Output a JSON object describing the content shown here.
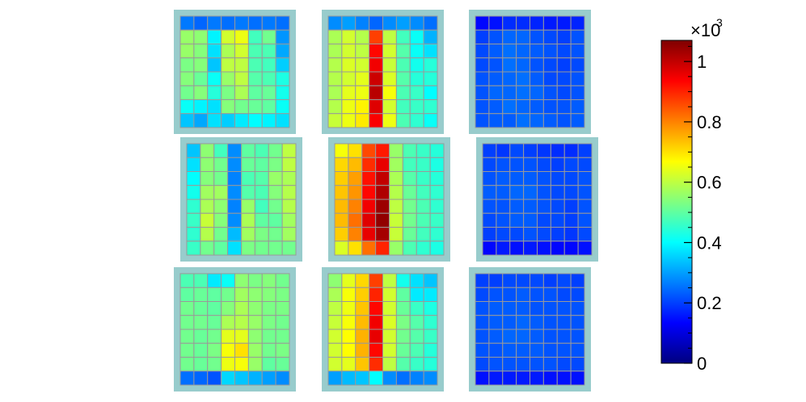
{
  "chart_data": {
    "type": "heatmap",
    "title": "",
    "grid": true,
    "layout": "3x3 panels of 8x8 cells",
    "frame_color": "#98cccc",
    "cell_grid_color": "#999999",
    "colorbar": {
      "min": 0,
      "max": 1.07,
      "multiplier_label": "×10",
      "multiplier_exponent": "3",
      "ticks": [
        {
          "value": 0,
          "label": "0"
        },
        {
          "value": 0.2,
          "label": "0.2"
        },
        {
          "value": 0.4,
          "label": "0.4"
        },
        {
          "value": 0.6,
          "label": "0.6"
        },
        {
          "value": 0.8,
          "label": "0.8"
        },
        {
          "value": 1.0,
          "label": "1"
        }
      ],
      "colormap": [
        "#00007f",
        "#0000ff",
        "#0080ff",
        "#00ffff",
        "#80ff80",
        "#ffff00",
        "#ff8000",
        "#ff0000",
        "#7f0000"
      ]
    },
    "panels": [
      {
        "row": 0,
        "col": 0,
        "values": [
          [
            0.26,
            0.24,
            0.26,
            0.25,
            0.26,
            0.25,
            0.26,
            0.25
          ],
          [
            0.56,
            0.55,
            0.39,
            0.62,
            0.65,
            0.47,
            0.52,
            0.29
          ],
          [
            0.56,
            0.54,
            0.37,
            0.58,
            0.62,
            0.48,
            0.48,
            0.31
          ],
          [
            0.53,
            0.54,
            0.34,
            0.6,
            0.6,
            0.48,
            0.47,
            0.35
          ],
          [
            0.54,
            0.51,
            0.41,
            0.56,
            0.6,
            0.49,
            0.48,
            0.43
          ],
          [
            0.52,
            0.54,
            0.44,
            0.53,
            0.58,
            0.5,
            0.51,
            0.42
          ],
          [
            0.41,
            0.39,
            0.37,
            0.54,
            0.52,
            0.51,
            0.5,
            0.41
          ],
          [
            0.34,
            0.31,
            0.37,
            0.35,
            0.38,
            0.4,
            0.39,
            0.37
          ]
        ]
      },
      {
        "row": 0,
        "col": 1,
        "values": [
          [
            0.28,
            0.3,
            0.27,
            0.24,
            0.28,
            0.3,
            0.28,
            0.25
          ],
          [
            0.58,
            0.62,
            0.59,
            0.87,
            0.6,
            0.47,
            0.41,
            0.32
          ],
          [
            0.58,
            0.62,
            0.6,
            0.93,
            0.62,
            0.49,
            0.41,
            0.37
          ],
          [
            0.59,
            0.63,
            0.62,
            0.95,
            0.61,
            0.48,
            0.42,
            0.44
          ],
          [
            0.59,
            0.62,
            0.64,
            0.99,
            0.63,
            0.49,
            0.44,
            0.44
          ],
          [
            0.58,
            0.64,
            0.65,
            1.01,
            0.66,
            0.48,
            0.46,
            0.4
          ],
          [
            0.59,
            0.65,
            0.68,
            0.97,
            0.62,
            0.47,
            0.46,
            0.45
          ],
          [
            0.61,
            0.65,
            0.69,
            0.94,
            0.65,
            0.48,
            0.45,
            0.41
          ]
        ]
      },
      {
        "row": 0,
        "col": 2,
        "values": [
          [
            0.14,
            0.15,
            0.18,
            0.18,
            0.17,
            0.16,
            0.16,
            0.17
          ],
          [
            0.2,
            0.22,
            0.24,
            0.24,
            0.22,
            0.21,
            0.2,
            0.22
          ],
          [
            0.21,
            0.23,
            0.25,
            0.24,
            0.23,
            0.22,
            0.21,
            0.22
          ],
          [
            0.21,
            0.22,
            0.25,
            0.24,
            0.22,
            0.21,
            0.2,
            0.21
          ],
          [
            0.22,
            0.23,
            0.24,
            0.25,
            0.23,
            0.21,
            0.21,
            0.22
          ],
          [
            0.22,
            0.24,
            0.24,
            0.25,
            0.24,
            0.22,
            0.21,
            0.22
          ],
          [
            0.22,
            0.23,
            0.25,
            0.24,
            0.23,
            0.22,
            0.22,
            0.23
          ],
          [
            0.22,
            0.23,
            0.23,
            0.25,
            0.24,
            0.23,
            0.22,
            0.23
          ]
        ]
      },
      {
        "row": 1,
        "col": 0,
        "values": [
          [
            0.34,
            0.55,
            0.47,
            0.28,
            0.5,
            0.48,
            0.52,
            0.6
          ],
          [
            0.37,
            0.55,
            0.52,
            0.28,
            0.51,
            0.5,
            0.53,
            0.6
          ],
          [
            0.4,
            0.54,
            0.52,
            0.27,
            0.48,
            0.49,
            0.56,
            0.58
          ],
          [
            0.42,
            0.57,
            0.57,
            0.28,
            0.49,
            0.48,
            0.54,
            0.59
          ],
          [
            0.45,
            0.58,
            0.55,
            0.27,
            0.56,
            0.47,
            0.52,
            0.59
          ],
          [
            0.46,
            0.61,
            0.54,
            0.28,
            0.58,
            0.5,
            0.5,
            0.57
          ],
          [
            0.45,
            0.59,
            0.52,
            0.33,
            0.57,
            0.53,
            0.52,
            0.57
          ],
          [
            0.46,
            0.52,
            0.5,
            0.37,
            0.53,
            0.52,
            0.52,
            0.52
          ]
        ]
      },
      {
        "row": 1,
        "col": 1,
        "values": [
          [
            0.66,
            0.7,
            0.86,
            0.91,
            0.56,
            0.48,
            0.46,
            0.44
          ],
          [
            0.71,
            0.74,
            0.89,
            0.96,
            0.57,
            0.47,
            0.46,
            0.43
          ],
          [
            0.72,
            0.77,
            0.92,
            1.0,
            0.58,
            0.49,
            0.46,
            0.44
          ],
          [
            0.73,
            0.78,
            0.93,
            1.02,
            0.59,
            0.51,
            0.47,
            0.45
          ],
          [
            0.74,
            0.8,
            0.95,
            1.04,
            0.6,
            0.52,
            0.48,
            0.45
          ],
          [
            0.74,
            0.82,
            0.97,
            1.05,
            0.61,
            0.52,
            0.48,
            0.46
          ],
          [
            0.72,
            0.8,
            0.96,
            1.03,
            0.61,
            0.51,
            0.47,
            0.45
          ],
          [
            0.63,
            0.7,
            0.82,
            0.9,
            0.56,
            0.48,
            0.45,
            0.43
          ]
        ]
      },
      {
        "row": 1,
        "col": 2,
        "values": [
          [
            0.2,
            0.19,
            0.21,
            0.2,
            0.19,
            0.18,
            0.18,
            0.2
          ],
          [
            0.21,
            0.22,
            0.22,
            0.22,
            0.21,
            0.2,
            0.21,
            0.21
          ],
          [
            0.22,
            0.23,
            0.23,
            0.23,
            0.22,
            0.21,
            0.21,
            0.22
          ],
          [
            0.23,
            0.23,
            0.24,
            0.24,
            0.22,
            0.21,
            0.21,
            0.22
          ],
          [
            0.22,
            0.22,
            0.23,
            0.23,
            0.22,
            0.21,
            0.2,
            0.22
          ],
          [
            0.21,
            0.22,
            0.23,
            0.23,
            0.21,
            0.21,
            0.2,
            0.22
          ],
          [
            0.2,
            0.21,
            0.21,
            0.22,
            0.21,
            0.2,
            0.19,
            0.21
          ],
          [
            0.14,
            0.16,
            0.15,
            0.16,
            0.15,
            0.14,
            0.14,
            0.15
          ]
        ]
      },
      {
        "row": 2,
        "col": 0,
        "values": [
          [
            0.48,
            0.48,
            0.38,
            0.41,
            0.55,
            0.53,
            0.54,
            0.52
          ],
          [
            0.5,
            0.51,
            0.5,
            0.52,
            0.57,
            0.55,
            0.54,
            0.53
          ],
          [
            0.52,
            0.51,
            0.5,
            0.54,
            0.58,
            0.55,
            0.53,
            0.53
          ],
          [
            0.52,
            0.52,
            0.51,
            0.58,
            0.59,
            0.56,
            0.53,
            0.52
          ],
          [
            0.52,
            0.51,
            0.52,
            0.64,
            0.64,
            0.55,
            0.52,
            0.52
          ],
          [
            0.52,
            0.51,
            0.53,
            0.66,
            0.7,
            0.56,
            0.52,
            0.53
          ],
          [
            0.52,
            0.51,
            0.52,
            0.65,
            0.66,
            0.56,
            0.5,
            0.51
          ],
          [
            0.25,
            0.24,
            0.22,
            0.36,
            0.34,
            0.32,
            0.3,
            0.28
          ]
        ]
      },
      {
        "row": 2,
        "col": 1,
        "values": [
          [
            0.55,
            0.64,
            0.71,
            0.87,
            0.6,
            0.42,
            0.37,
            0.34
          ],
          [
            0.58,
            0.66,
            0.72,
            0.9,
            0.62,
            0.5,
            0.38,
            0.38
          ],
          [
            0.6,
            0.65,
            0.73,
            0.93,
            0.62,
            0.51,
            0.46,
            0.43
          ],
          [
            0.61,
            0.66,
            0.74,
            0.95,
            0.63,
            0.53,
            0.49,
            0.45
          ],
          [
            0.62,
            0.67,
            0.75,
            0.96,
            0.62,
            0.52,
            0.49,
            0.46
          ],
          [
            0.62,
            0.67,
            0.75,
            0.93,
            0.62,
            0.51,
            0.48,
            0.44
          ],
          [
            0.62,
            0.64,
            0.73,
            0.89,
            0.6,
            0.49,
            0.46,
            0.44
          ],
          [
            0.3,
            0.33,
            0.34,
            0.4,
            0.28,
            0.25,
            0.27,
            0.28
          ]
        ]
      },
      {
        "row": 2,
        "col": 2,
        "values": [
          [
            0.2,
            0.2,
            0.21,
            0.21,
            0.21,
            0.2,
            0.21,
            0.2
          ],
          [
            0.21,
            0.22,
            0.22,
            0.23,
            0.22,
            0.22,
            0.21,
            0.21
          ],
          [
            0.22,
            0.23,
            0.23,
            0.23,
            0.22,
            0.22,
            0.22,
            0.22
          ],
          [
            0.22,
            0.23,
            0.23,
            0.24,
            0.23,
            0.22,
            0.22,
            0.22
          ],
          [
            0.22,
            0.23,
            0.24,
            0.24,
            0.23,
            0.22,
            0.22,
            0.22
          ],
          [
            0.22,
            0.22,
            0.23,
            0.23,
            0.23,
            0.22,
            0.22,
            0.22
          ],
          [
            0.21,
            0.22,
            0.22,
            0.22,
            0.22,
            0.22,
            0.21,
            0.21
          ],
          [
            0.15,
            0.16,
            0.16,
            0.16,
            0.16,
            0.15,
            0.15,
            0.15
          ]
        ]
      }
    ]
  }
}
